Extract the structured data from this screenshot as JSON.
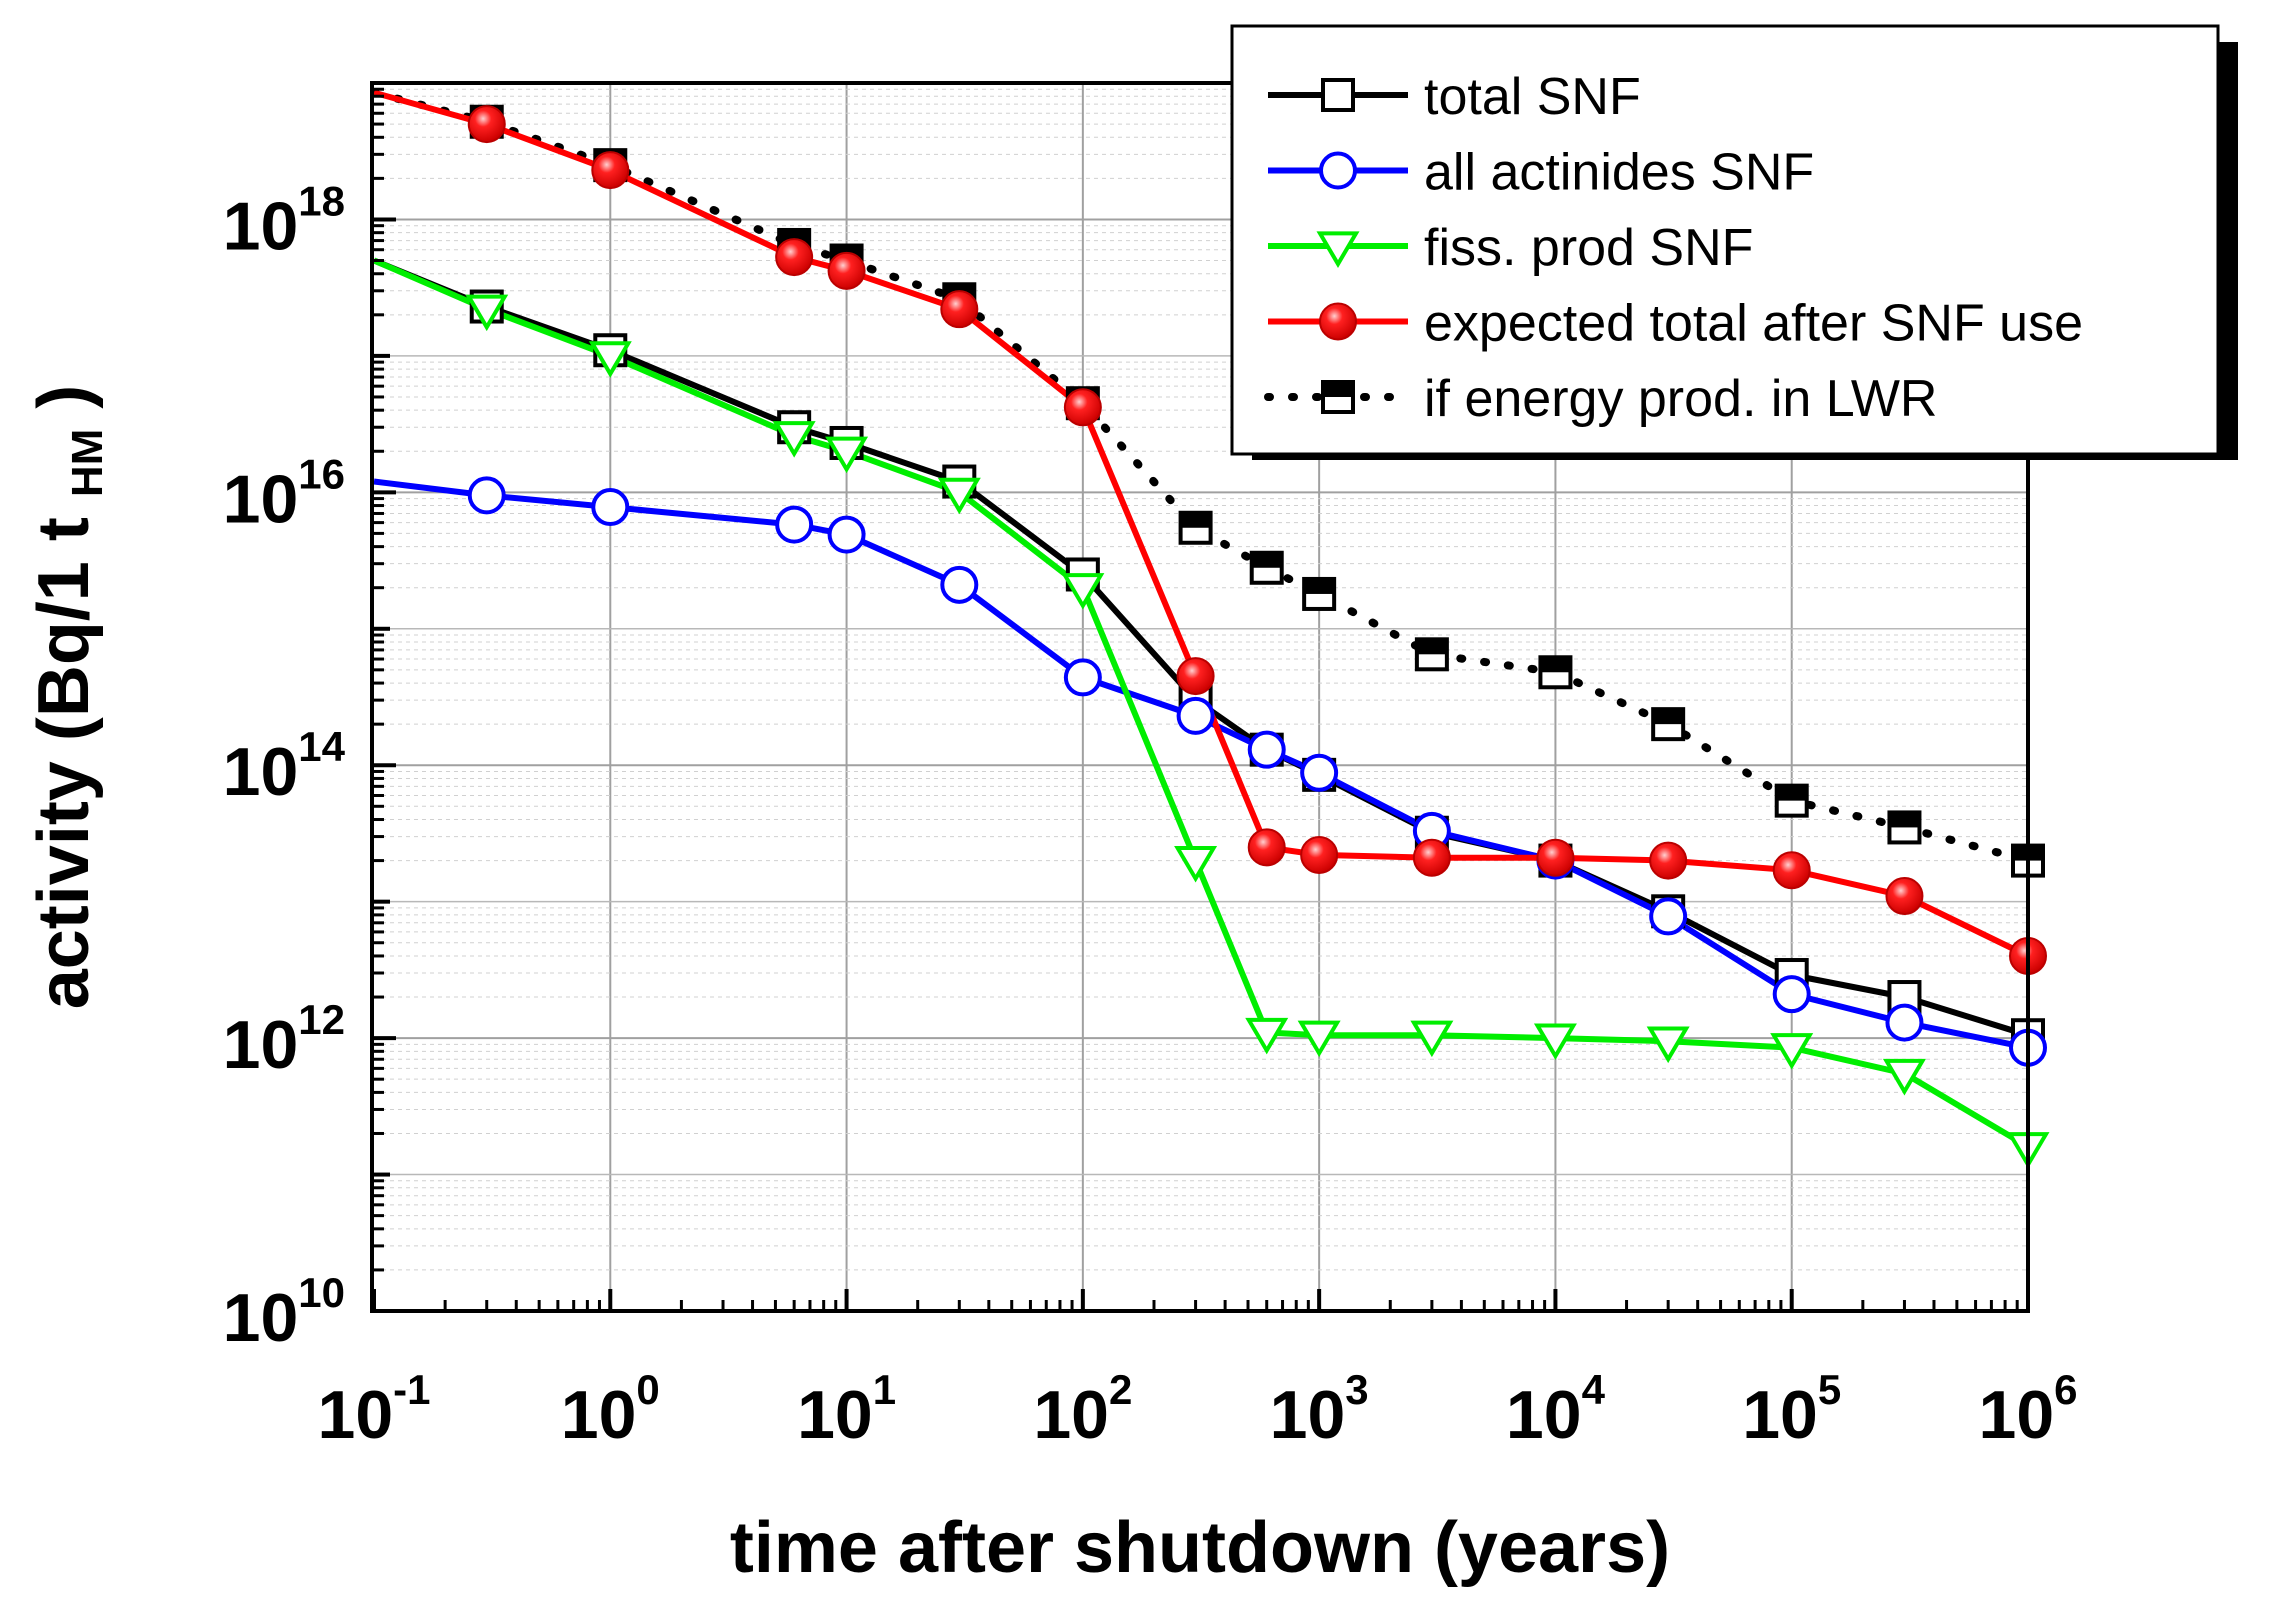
{
  "chart_data": {
    "type": "line",
    "xscale": "log",
    "yscale": "log",
    "xlim": [
      0.1,
      1000000
    ],
    "ylim": [
      10000000000.0,
      1e+19
    ],
    "grid": true,
    "xlabel": "time after shutdown (years)",
    "ylabel_main": "activity (Bq/1 t",
    "ylabel_sub": "HM",
    "ylabel_close": ")",
    "legend_position": "top-right",
    "x_ticks": [
      {
        "base": "10",
        "exp": "-1",
        "value": 0.1
      },
      {
        "base": "10",
        "exp": "0",
        "value": 1
      },
      {
        "base": "10",
        "exp": "1",
        "value": 10
      },
      {
        "base": "10",
        "exp": "2",
        "value": 100
      },
      {
        "base": "10",
        "exp": "3",
        "value": 1000
      },
      {
        "base": "10",
        "exp": "4",
        "value": 10000
      },
      {
        "base": "10",
        "exp": "5",
        "value": 100000
      },
      {
        "base": "10",
        "exp": "6",
        "value": 1000000
      }
    ],
    "y_ticks": [
      {
        "base": "10",
        "exp": "10",
        "value": 10000000000.0
      },
      {
        "base": "10",
        "exp": "12",
        "value": 1000000000000.0
      },
      {
        "base": "10",
        "exp": "14",
        "value": 100000000000000.0
      },
      {
        "base": "10",
        "exp": "16",
        "value": 1e+16
      },
      {
        "base": "10",
        "exp": "18",
        "value": 1e+18
      }
    ],
    "series": [
      {
        "name": "if energy prod. in LWR",
        "color": "#000000",
        "line_style": "dotted",
        "marker": "half-filled-square",
        "x": [
          0.1,
          0.3,
          1,
          6,
          10,
          30,
          100,
          300,
          600,
          1000,
          3000,
          10000,
          30000,
          100000,
          300000,
          1000000
        ],
        "y": [
          8.5e+18,
          5.2e+18,
          2.5e+18,
          6.5e+17,
          5e+17,
          2.6e+17,
          4.5e+16,
          5500000000000000.0,
          2800000000000000.0,
          1800000000000000.0,
          650000000000000.0,
          480000000000000.0,
          200000000000000.0,
          55000000000000.0,
          35000000000000.0,
          20000000000000.0
        ]
      },
      {
        "name": "total SNF",
        "color": "#000000",
        "line_style": "solid",
        "marker": "open-square",
        "x": [
          0.1,
          0.3,
          1,
          6,
          10,
          30,
          100,
          300,
          600,
          1000,
          3000,
          10000,
          30000,
          100000,
          300000,
          1000000
        ],
        "y": [
          5e+17,
          2.3e+17,
          1.1e+17,
          3e+16,
          2.3e+16,
          1.2e+16,
          2500000000000000.0,
          300000000000000.0,
          130000000000000.0,
          85000000000000.0,
          32000000000000.0,
          20000000000000.0,
          8500000000000.0,
          2900000000000.0,
          2000000000000.0,
          1050000000000.0
        ]
      },
      {
        "name": "all actinides SNF",
        "color": "#0000ff",
        "line_style": "solid",
        "marker": "open-circle",
        "x": [
          0.1,
          0.3,
          1,
          6,
          10,
          30,
          100,
          300,
          600,
          1000,
          3000,
          10000,
          30000,
          100000,
          300000,
          1000000
        ],
        "y": [
          1.2e+16,
          9500000000000000.0,
          7800000000000000.0,
          5800000000000000.0,
          4900000000000000.0,
          2100000000000000.0,
          440000000000000.0,
          230000000000000.0,
          130000000000000.0,
          88000000000000.0,
          33000000000000.0,
          20000000000000.0,
          7800000000000.0,
          2100000000000.0,
          1300000000000.0,
          850000000000.0
        ]
      },
      {
        "name": "fiss. prod SNF",
        "color": "#00ee00",
        "line_style": "solid",
        "marker": "open-triangle-down",
        "x": [
          0.1,
          0.3,
          1,
          6,
          10,
          30,
          100,
          300,
          600,
          1000,
          3000,
          10000,
          30000,
          100000,
          300000,
          1000000
        ],
        "y": [
          5e+17,
          2.2e+17,
          1e+17,
          2.6e+16,
          2e+16,
          1e+16,
          2000000000000000.0,
          20000000000000.0,
          1100000000000.0,
          1050000000000.0,
          1050000000000.0,
          1000000000000.0,
          950000000000.0,
          850000000000.0,
          550000000000.0,
          160000000000.0
        ]
      },
      {
        "name": "expected total after SNF use",
        "color": "#ff0000",
        "line_style": "solid",
        "marker": "filled-circle",
        "x": [
          0.1,
          0.3,
          1,
          6,
          10,
          30,
          100,
          300,
          600,
          1000,
          3000,
          10000,
          30000,
          100000,
          300000,
          1000000
        ],
        "y": [
          8.5e+18,
          5e+18,
          2.3e+18,
          5.3e+17,
          4.2e+17,
          2.2e+17,
          4.2e+16,
          450000000000000.0,
          25000000000000.0,
          22000000000000.0,
          21000000000000.0,
          21000000000000.0,
          20000000000000.0,
          17000000000000.0,
          11000000000000.0,
          4000000000000.0
        ]
      }
    ],
    "legend_order": [
      "total SNF",
      "all actinides SNF",
      "fiss. prod SNF",
      "expected total after SNF use",
      "if energy prod. in LWR"
    ]
  }
}
